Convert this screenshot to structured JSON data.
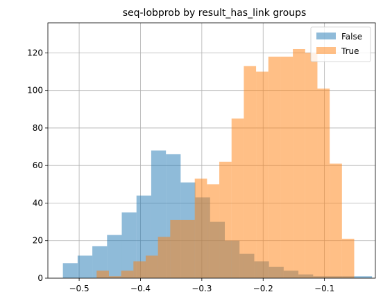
{
  "chart_data": {
    "type": "bar",
    "subtype": "overlaid-histogram",
    "title": "seq-lobprob by result_has_link groups",
    "xlabel": "",
    "ylabel": "",
    "xlim": [
      -0.551,
      -0.017
    ],
    "ylim": [
      0,
      136
    ],
    "xticks": [
      -0.5,
      -0.4,
      -0.3,
      -0.2,
      -0.1
    ],
    "xtick_labels": [
      "−0.5",
      "−0.4",
      "−0.3",
      "−0.2",
      "−0.1"
    ],
    "yticks": [
      0,
      20,
      40,
      60,
      80,
      100,
      120
    ],
    "ytick_labels": [
      "0",
      "20",
      "40",
      "60",
      "80",
      "100",
      "120"
    ],
    "grid": true,
    "legend_position": "top-right",
    "series": [
      {
        "name": "False",
        "color": "#1f77b4",
        "alpha": 0.5,
        "bin_edges": [
          -0.5265,
          -0.5025,
          -0.4785,
          -0.4545,
          -0.4305,
          -0.4065,
          -0.3825,
          -0.3585,
          -0.3345,
          -0.3105,
          -0.2865,
          -0.2625,
          -0.2385,
          -0.2145,
          -0.1905,
          -0.1665,
          -0.1425,
          -0.1185,
          -0.0945,
          -0.0705,
          -0.0465,
          -0.0225
        ],
        "counts": [
          8,
          12,
          17,
          23,
          35,
          44,
          68,
          66,
          51,
          43,
          30,
          20,
          13,
          9,
          6,
          4,
          2,
          1,
          1,
          1,
          1
        ]
      },
      {
        "name": "True",
        "color": "#ff7f0e",
        "alpha": 0.5,
        "bin_edges": [
          -0.4715,
          -0.4515,
          -0.4315,
          -0.4115,
          -0.3915,
          -0.3715,
          -0.3515,
          -0.3315,
          -0.3115,
          -0.2915,
          -0.2715,
          -0.2515,
          -0.2315,
          -0.2115,
          -0.1915,
          -0.1715,
          -0.1515,
          -0.1315,
          -0.1115,
          -0.0915,
          -0.0715,
          -0.0515
        ],
        "counts": [
          4,
          1,
          4,
          9,
          12,
          22,
          31,
          31,
          53,
          50,
          62,
          85,
          113,
          110,
          118,
          118,
          122,
          120,
          101,
          61,
          21
        ]
      }
    ]
  }
}
